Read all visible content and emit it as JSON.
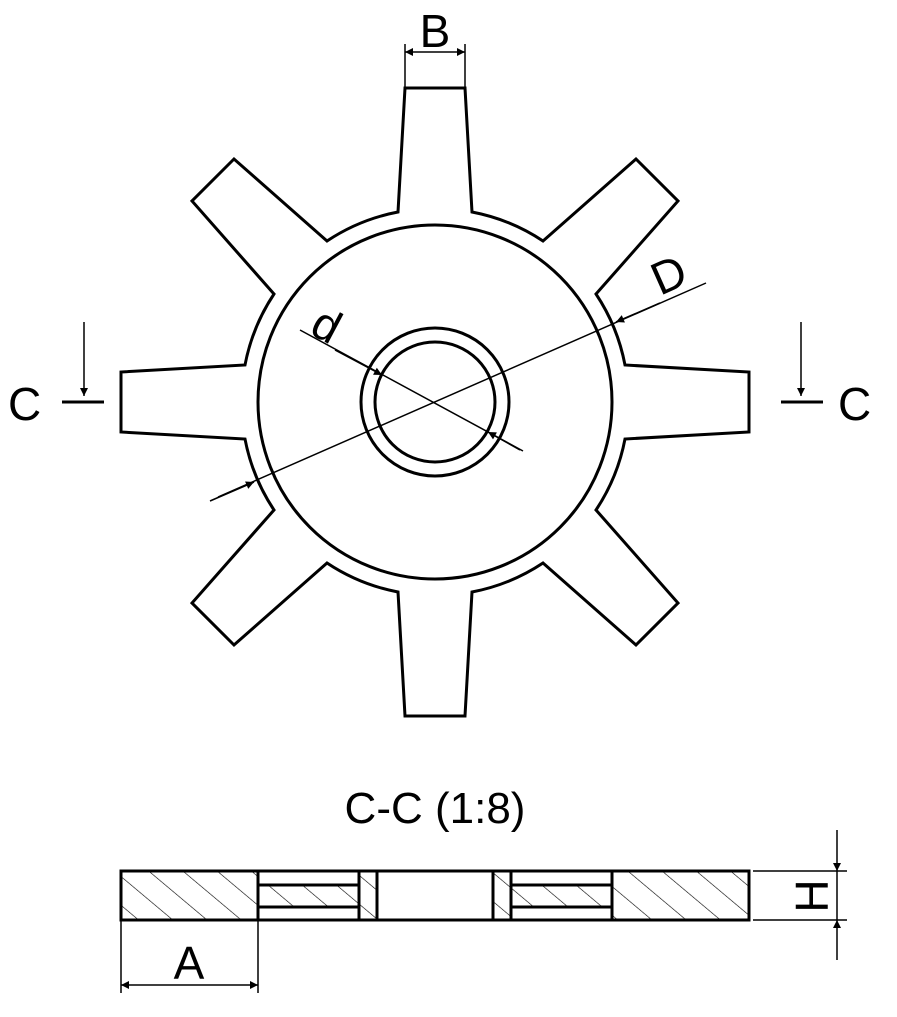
{
  "drawing": {
    "labels": {
      "B": "B",
      "D": "D",
      "d": "d",
      "c_left": "C",
      "c_right": "C",
      "A": "A",
      "H": "H"
    },
    "section_title": "C-C (1:8)"
  }
}
